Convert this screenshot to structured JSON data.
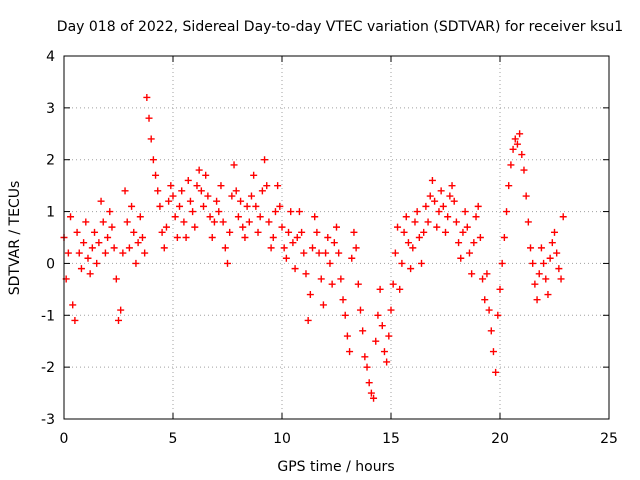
{
  "chart_data": {
    "type": "scatter",
    "title": "Day 018 of 2022, Sidereal Day-to-day VTEC variation (SDTVAR) for receiver ksu1",
    "xlabel": "GPS time / hours",
    "ylabel": "SDTVAR / TECUs",
    "xlim": [
      0,
      25
    ],
    "ylim": [
      -3,
      4
    ],
    "xticks": [
      0,
      5,
      10,
      15,
      20,
      25
    ],
    "yticks": [
      -3,
      -2,
      -1,
      0,
      1,
      2,
      3,
      4
    ],
    "grid": true,
    "marker": "plus",
    "series_color": "#ff0000",
    "series": [
      {
        "name": "SDTVAR",
        "x": [
          0.0,
          0.1,
          0.2,
          0.3,
          0.4,
          0.5,
          0.6,
          0.7,
          0.8,
          0.9,
          1.0,
          1.1,
          1.2,
          1.3,
          1.4,
          1.5,
          1.6,
          1.7,
          1.8,
          1.9,
          2.0,
          2.1,
          2.2,
          2.3,
          2.4,
          2.5,
          2.6,
          2.7,
          2.8,
          2.9,
          3.0,
          3.1,
          3.2,
          3.3,
          3.4,
          3.5,
          3.6,
          3.7,
          3.8,
          3.9,
          4.0,
          4.1,
          4.2,
          4.3,
          4.4,
          4.5,
          4.6,
          4.7,
          4.8,
          4.9,
          5.0,
          5.1,
          5.2,
          5.3,
          5.4,
          5.5,
          5.6,
          5.7,
          5.8,
          5.9,
          6.0,
          6.1,
          6.2,
          6.3,
          6.4,
          6.5,
          6.6,
          6.7,
          6.8,
          6.9,
          7.0,
          7.1,
          7.2,
          7.3,
          7.4,
          7.5,
          7.6,
          7.7,
          7.8,
          7.9,
          8.0,
          8.1,
          8.2,
          8.3,
          8.4,
          8.5,
          8.6,
          8.7,
          8.8,
          8.9,
          9.0,
          9.1,
          9.2,
          9.3,
          9.4,
          9.5,
          9.6,
          9.7,
          9.8,
          9.9,
          10.0,
          10.1,
          10.2,
          10.3,
          10.4,
          10.5,
          10.6,
          10.7,
          10.8,
          10.9,
          11.0,
          11.1,
          11.2,
          11.3,
          11.4,
          11.5,
          11.6,
          11.7,
          11.8,
          11.9,
          12.0,
          12.1,
          12.2,
          12.3,
          12.4,
          12.5,
          12.6,
          12.7,
          12.8,
          12.9,
          13.0,
          13.1,
          13.2,
          13.3,
          13.4,
          13.5,
          13.6,
          13.7,
          13.8,
          13.9,
          14.0,
          14.1,
          14.2,
          14.3,
          14.4,
          14.5,
          14.6,
          14.7,
          14.8,
          14.9,
          15.0,
          15.1,
          15.2,
          15.3,
          15.4,
          15.5,
          15.6,
          15.7,
          15.8,
          15.9,
          16.0,
          16.1,
          16.2,
          16.3,
          16.4,
          16.5,
          16.6,
          16.7,
          16.8,
          16.9,
          17.0,
          17.1,
          17.2,
          17.3,
          17.4,
          17.5,
          17.6,
          17.7,
          17.8,
          17.9,
          18.0,
          18.1,
          18.2,
          18.3,
          18.4,
          18.5,
          18.6,
          18.7,
          18.8,
          18.9,
          19.0,
          19.1,
          19.2,
          19.3,
          19.4,
          19.5,
          19.6,
          19.7,
          19.8,
          19.9,
          20.0,
          20.1,
          20.2,
          20.3,
          20.4,
          20.5,
          20.6,
          20.7,
          20.8,
          20.9,
          21.0,
          21.1,
          21.2,
          21.3,
          21.4,
          21.5,
          21.6,
          21.7,
          21.8,
          21.9,
          22.0,
          22.1,
          22.2,
          22.3,
          22.4,
          22.5,
          22.6,
          22.7,
          22.8,
          22.9
        ],
        "y": [
          0.5,
          -0.3,
          0.2,
          0.9,
          -0.8,
          -1.1,
          0.6,
          0.2,
          -0.1,
          0.4,
          0.8,
          0.1,
          -0.2,
          0.3,
          0.6,
          0.0,
          0.4,
          1.2,
          0.8,
          0.2,
          0.5,
          1.0,
          0.7,
          0.3,
          -0.3,
          -1.1,
          -0.9,
          0.2,
          1.4,
          0.8,
          0.3,
          1.1,
          0.6,
          0.0,
          0.4,
          0.9,
          0.5,
          0.2,
          3.2,
          2.8,
          2.4,
          2.0,
          1.7,
          1.4,
          1.1,
          0.6,
          0.3,
          0.7,
          1.2,
          1.5,
          1.3,
          0.9,
          0.5,
          1.1,
          1.4,
          0.8,
          0.5,
          1.6,
          1.2,
          1.0,
          0.7,
          1.5,
          1.8,
          1.4,
          1.1,
          1.7,
          1.3,
          0.9,
          0.5,
          0.8,
          1.2,
          1.0,
          1.5,
          0.8,
          0.3,
          0.0,
          0.6,
          1.3,
          1.9,
          1.4,
          0.9,
          1.2,
          0.7,
          0.5,
          1.1,
          0.8,
          1.3,
          1.7,
          1.1,
          0.6,
          0.9,
          1.4,
          2.0,
          1.5,
          0.8,
          0.3,
          0.5,
          1.0,
          1.5,
          1.1,
          0.7,
          0.3,
          0.1,
          0.6,
          1.0,
          0.4,
          -0.1,
          0.5,
          1.0,
          0.6,
          0.2,
          -0.2,
          -1.1,
          -0.6,
          0.3,
          0.9,
          0.6,
          0.2,
          -0.3,
          -0.8,
          0.2,
          0.5,
          0.0,
          -0.4,
          0.4,
          0.7,
          0.2,
          -0.3,
          -0.7,
          -1.0,
          -1.4,
          -1.7,
          0.1,
          0.6,
          0.3,
          -0.4,
          -0.9,
          -1.3,
          -1.8,
          -2.0,
          -2.3,
          -2.5,
          -2.6,
          -1.5,
          -1.0,
          -0.5,
          -1.2,
          -1.7,
          -1.9,
          -1.4,
          -0.9,
          -0.4,
          0.2,
          0.7,
          -0.5,
          0.0,
          0.6,
          0.9,
          0.4,
          -0.1,
          0.3,
          0.8,
          1.0,
          0.5,
          0.0,
          0.6,
          1.1,
          0.8,
          1.3,
          1.6,
          1.2,
          0.7,
          1.0,
          1.4,
          1.1,
          0.6,
          0.9,
          1.3,
          1.5,
          1.2,
          0.8,
          0.4,
          0.1,
          0.6,
          1.0,
          0.7,
          0.2,
          -0.2,
          0.4,
          0.9,
          1.1,
          0.5,
          -0.3,
          -0.7,
          -0.2,
          -0.9,
          -1.3,
          -1.7,
          -2.1,
          -1.0,
          -0.5,
          0.0,
          0.5,
          1.0,
          1.5,
          1.9,
          2.2,
          2.4,
          2.3,
          2.5,
          2.1,
          1.8,
          1.3,
          0.8,
          0.3,
          0.0,
          -0.4,
          -0.7,
          -0.2,
          0.3,
          0.0,
          -0.3,
          -0.6,
          0.1,
          0.4,
          0.6,
          0.2,
          -0.1,
          -0.3,
          0.9
        ]
      }
    ]
  }
}
